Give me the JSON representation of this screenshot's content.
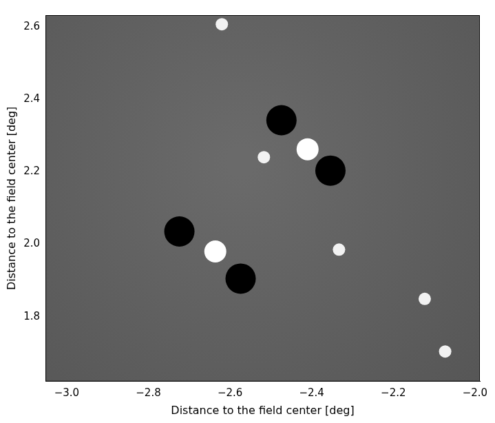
{
  "chart_data": {
    "type": "scatter",
    "x_label": "Distance to the field center [deg]",
    "y_label": "Distance to the field center [deg]",
    "xlim": [
      -3.052,
      -1.988
    ],
    "ylim": [
      1.621,
      2.632
    ],
    "xticks": [
      {
        "value": -3.0,
        "label": "−3.0"
      },
      {
        "value": -2.8,
        "label": "−2.8"
      },
      {
        "value": -2.6,
        "label": "−2.6"
      },
      {
        "value": -2.4,
        "label": "−2.4"
      },
      {
        "value": -2.2,
        "label": "−2.2"
      },
      {
        "value": -2.0,
        "label": "−2.0"
      }
    ],
    "yticks": [
      1.8,
      {
        "value": 2.0,
        "label": "2.0"
      },
      2.2,
      2.4,
      2.6
    ],
    "grid": false,
    "series": [
      {
        "color": "#ffffff",
        "x": [
          -2.41,
          -2.636
        ],
        "y": [
          2.262,
          1.98
        ]
      },
      {
        "color": "#f2f2f2",
        "x": [
          -2.333,
          -2.123,
          -2.073,
          -2.62,
          -2.517
        ],
        "y": [
          1.985,
          1.849,
          1.704,
          2.607,
          2.24
        ]
      },
      {
        "color": "#000000",
        "x": [
          -2.474,
          -2.354,
          -2.724,
          -2.574
        ],
        "y": [
          2.342,
          2.203,
          2.035,
          1.905
        ]
      }
    ]
  }
}
